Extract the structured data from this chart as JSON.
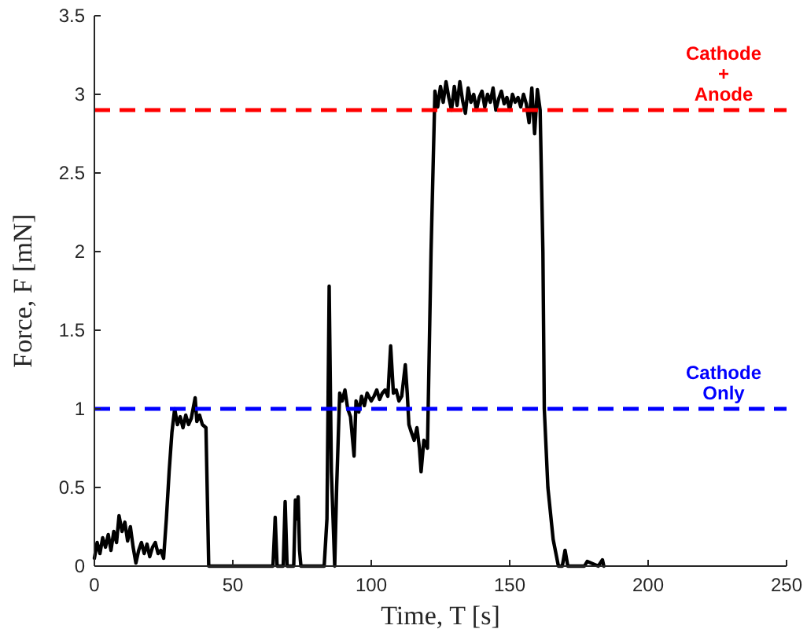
{
  "chart_data": {
    "type": "line",
    "xlabel": "Time, T [s]",
    "ylabel": "Force, F [mN]",
    "xlim": [
      0,
      250
    ],
    "ylim": [
      0,
      3.5
    ],
    "xticks": [
      0,
      50,
      100,
      150,
      200,
      250
    ],
    "yticks": [
      0,
      0.5,
      1,
      1.5,
      2,
      2.5,
      3,
      3.5
    ],
    "grid": false,
    "line_style": "solid",
    "series": [
      {
        "color": "#000000",
        "x": [
          0,
          1,
          2,
          3,
          4,
          5,
          6,
          7,
          8,
          8.9,
          10,
          11,
          12,
          13,
          14,
          15,
          16,
          17,
          18,
          19,
          20,
          21,
          22,
          23,
          24,
          25,
          26,
          27,
          28,
          29,
          30,
          31,
          32,
          33,
          34,
          35,
          36.4,
          37,
          38,
          39,
          40.3,
          41.3,
          45,
          50,
          55,
          60,
          64.5,
          65.3,
          66,
          68.2,
          68.9,
          69.6,
          72,
          72.6,
          73.1,
          73.6,
          74.1,
          74.6,
          83,
          84,
          84.8,
          85.6,
          86.8,
          87.5,
          88.6,
          89.5,
          90.5,
          91.5,
          92.5,
          93.8,
          94.5,
          95.5,
          96.5,
          97.5,
          98.5,
          100,
          101,
          102,
          103,
          104,
          105,
          106,
          107,
          108,
          109,
          110,
          111,
          112.3,
          113,
          113.6,
          114.5,
          115.5,
          116.5,
          117.4,
          118,
          119,
          120.3,
          121.6,
          123,
          124,
          125,
          126,
          127,
          128,
          129,
          130,
          131,
          132,
          133,
          134,
          135,
          136,
          137,
          138,
          139,
          140,
          141,
          142,
          143,
          144,
          145,
          146,
          147,
          148,
          149,
          150,
          151,
          152,
          153,
          154,
          155,
          156,
          157,
          158,
          159,
          160,
          161,
          162,
          162.5,
          163.8,
          165.7,
          167.6,
          169,
          170,
          171,
          175,
          177,
          178,
          182,
          183.5,
          184
        ],
        "values": [
          0.05,
          0.15,
          0.08,
          0.18,
          0.12,
          0.2,
          0.1,
          0.22,
          0.15,
          0.32,
          0.22,
          0.28,
          0.16,
          0.25,
          0.12,
          0.02,
          0.1,
          0.15,
          0.08,
          0.14,
          0.06,
          0.12,
          0.15,
          0.08,
          0.1,
          0.05,
          0.3,
          0.6,
          0.85,
          1.0,
          0.9,
          0.95,
          0.88,
          0.96,
          0.9,
          0.94,
          1.07,
          0.92,
          0.96,
          0.9,
          0.88,
          0,
          0,
          0,
          0,
          0,
          0,
          0.31,
          0,
          0,
          0.41,
          0,
          0,
          0.42,
          0.3,
          0.44,
          0.1,
          0,
          0,
          0.3,
          1.78,
          0.6,
          0,
          0.5,
          1.1,
          1.05,
          1.12,
          1.0,
          0.95,
          0.7,
          1.05,
          0.98,
          1.08,
          1.02,
          1.1,
          1.05,
          1.08,
          1.12,
          1.06,
          1.1,
          1.12,
          1.08,
          1.4,
          1.1,
          1.12,
          1.05,
          1.08,
          1.28,
          1.1,
          0.9,
          0.85,
          0.8,
          0.88,
          0.75,
          0.6,
          0.8,
          0.75,
          2.0,
          3.02,
          2.92,
          3.05,
          2.95,
          3.08,
          2.98,
          2.9,
          3.05,
          2.93,
          3.08,
          2.96,
          2.88,
          3.04,
          2.95,
          3.0,
          2.9,
          2.98,
          3.02,
          2.92,
          3.0,
          2.95,
          3.04,
          2.9,
          2.97,
          3.02,
          2.94,
          2.98,
          2.9,
          3.0,
          2.95,
          2.98,
          2.92,
          3.0,
          2.94,
          2.82,
          3.04,
          2.75,
          3.03,
          2.9,
          2.0,
          1.0,
          0.5,
          0.17,
          0,
          0,
          0.1,
          0,
          0,
          0,
          0.03,
          0,
          0.04,
          0
        ]
      }
    ],
    "ref_lines": [
      {
        "axis": "y",
        "value": 2.9,
        "label": "Cathode + Anode",
        "color": "#ff0000",
        "line_style": "dashed"
      },
      {
        "axis": "y",
        "value": 1,
        "label": "Cathode Only",
        "color": "#0000ff",
        "line_style": "dashed"
      }
    ]
  }
}
